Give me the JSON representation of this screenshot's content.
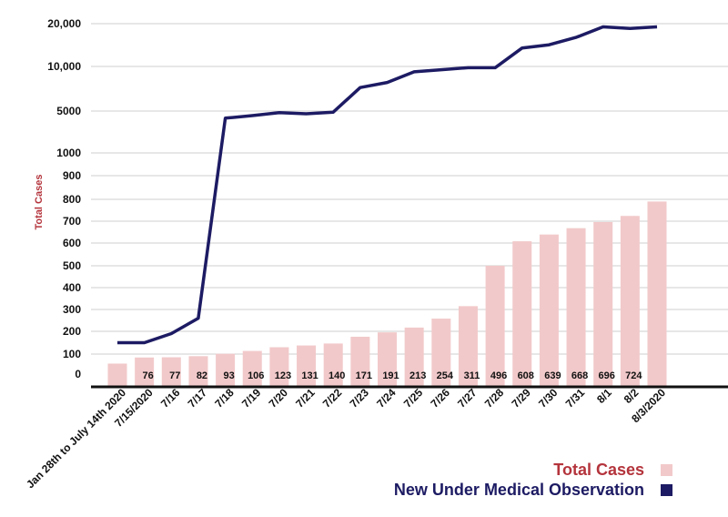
{
  "colors": {
    "bar": "#f2c9ca",
    "line": "#1d1b63",
    "total_label": "#b4343c",
    "grid": "#cfcfcf",
    "axis": "#111111"
  },
  "chart_data": {
    "type": "bar",
    "title": "",
    "xlabel": "",
    "ylabel": "Total Cases",
    "y_tick_labels": [
      "0",
      "100",
      "200",
      "300",
      "400",
      "500",
      "600",
      "700",
      "800",
      "900",
      "1000",
      "5000",
      "10,000",
      "20,000"
    ],
    "categories": [
      "Jan 28th to July 14th 2020",
      "7/15/2020",
      "7/16",
      "7/17",
      "7/18",
      "7/19",
      "7/20",
      "7/21",
      "7/22",
      "7/23",
      "7/24",
      "7/25",
      "7/26",
      "7/27",
      "7/28",
      "7/29",
      "7/30",
      "7/31",
      "8/1",
      "8/2",
      "8/3/2020"
    ],
    "series": [
      {
        "name": "Total Cases",
        "type": "bar",
        "values": [
          48,
          76,
          77,
          82,
          93,
          106,
          123,
          131,
          140,
          171,
          191,
          213,
          254,
          311,
          496,
          608,
          639,
          668,
          696,
          724,
          790
        ],
        "data_labels": [
          "",
          "76",
          "77",
          "82",
          "93",
          "106",
          "123",
          "131",
          "140",
          "171",
          "191",
          "213",
          "254",
          "311",
          "496",
          "608",
          "639",
          "668",
          "696",
          "724",
          ""
        ]
      },
      {
        "name": "New Under Medical Observation",
        "type": "line",
        "values": [
          150,
          150,
          190,
          260,
          3800,
          4200,
          4700,
          4500,
          4800,
          7200,
          7800,
          9200,
          9500,
          9800,
          9800,
          13500,
          14200,
          16000,
          19000,
          18500,
          19000
        ]
      }
    ],
    "legend_position": "bottom-right",
    "grid": true
  }
}
